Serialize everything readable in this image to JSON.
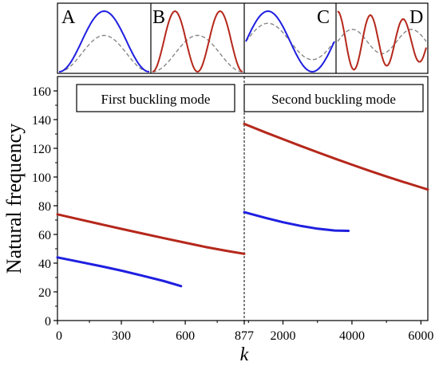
{
  "colors": {
    "blue": "#1f1fe0",
    "red": "#b5281c",
    "dashed": "#888888",
    "axis": "#000000"
  },
  "panels": {
    "left_label": "First buckling mode",
    "right_label": "Second buckling mode"
  },
  "insets": [
    {
      "letter": "A",
      "solid_color": "red_none_blue",
      "solid_shape": "one_hump"
    },
    {
      "letter": "B",
      "solid_shape": "two_humps"
    },
    {
      "letter": "C",
      "solid_shape": "full_sine"
    },
    {
      "letter": "D",
      "solid_shape": "damped_wave"
    }
  ],
  "inset_letters": [
    "A",
    "B",
    "C",
    "D"
  ],
  "axes": {
    "ylabel": "Natural frequency",
    "xlabel": "k",
    "yticks": [
      "0",
      "20",
      "40",
      "60",
      "80",
      "100",
      "120",
      "140",
      "160"
    ],
    "xticks_left": [
      "0",
      "300",
      "600",
      "877"
    ],
    "xticks_right": [
      "2000",
      "4000",
      "6000"
    ]
  },
  "chart_data": {
    "type": "line",
    "ylabel": "Natural frequency",
    "xlabel": "k",
    "ylim": [
      0,
      170
    ],
    "panels": [
      {
        "name": "First buckling mode",
        "xlim": [
          0,
          877
        ],
        "series": [
          {
            "color": "red",
            "x": [
              0,
              100,
              200,
              300,
              400,
              500,
              600,
              700,
              800,
              877
            ],
            "y": [
              74.0,
              70.6,
              67.2,
              63.9,
              60.6,
              57.4,
              54.2,
              51.1,
              48.4,
              46.5
            ]
          },
          {
            "color": "blue",
            "x": [
              0,
              100,
              200,
              300,
              400,
              500,
              580
            ],
            "y": [
              44.0,
              41.0,
              38.0,
              34.8,
              31.2,
              27.5,
              24.0
            ]
          }
        ]
      },
      {
        "name": "Second buckling mode",
        "xlim": [
          877,
          6200
        ],
        "series": [
          {
            "color": "red",
            "x": [
              877,
              1500,
              2000,
              2500,
              3000,
              3500,
              4000,
              4500,
              5000,
              5500,
              6000,
              6200
            ],
            "y": [
              137.0,
              131.0,
              126.4,
              121.8,
              117.3,
              112.9,
              108.6,
              104.4,
              100.4,
              96.5,
              92.8,
              91.3
            ]
          },
          {
            "color": "blue",
            "x": [
              877,
              1500,
              2000,
              2500,
              3000,
              3500,
              3900
            ],
            "y": [
              75.5,
              71.5,
              68.5,
              66.0,
              64.0,
              62.7,
              62.5
            ]
          }
        ]
      }
    ]
  }
}
